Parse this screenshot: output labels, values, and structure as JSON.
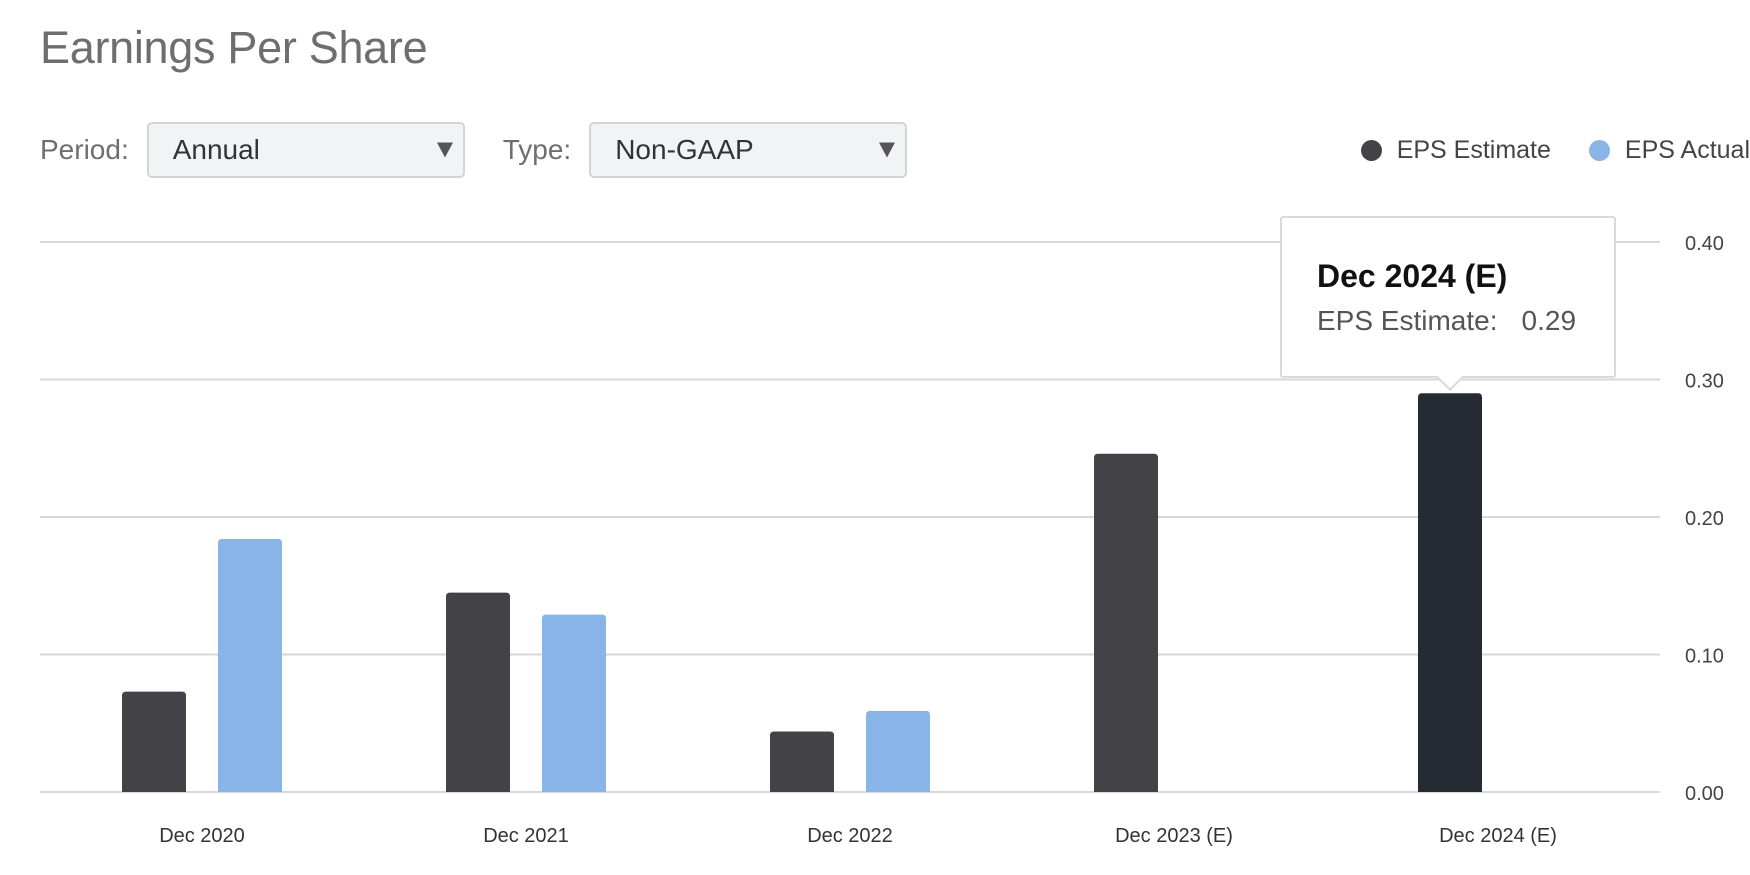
{
  "header": {
    "title": "Earnings Per Share"
  },
  "controls": {
    "period": {
      "label": "Period:",
      "value": "Annual"
    },
    "type": {
      "label": "Type:",
      "value": "Non-GAAP"
    }
  },
  "legend": [
    {
      "name": "EPS Estimate",
      "color": "#434347"
    },
    {
      "name": "EPS Actual",
      "color": "#88b4e7"
    }
  ],
  "tooltip": {
    "title": "Dec 2024 (E)",
    "label": "EPS Estimate:",
    "value": "0.29"
  },
  "chart_data": {
    "type": "bar",
    "title": "Earnings Per Share",
    "categories": [
      "Dec 2020",
      "Dec 2021",
      "Dec 2022",
      "Dec 2023 (E)",
      "Dec 2024 (E)"
    ],
    "series": [
      {
        "name": "EPS Estimate",
        "color": "#434347",
        "values": [
          0.073,
          0.145,
          0.044,
          0.246,
          0.29
        ]
      },
      {
        "name": "EPS Actual",
        "color": "#88b4e7",
        "values": [
          0.184,
          0.129,
          0.059,
          null,
          null
        ]
      }
    ],
    "highlight": {
      "series": "EPS Estimate",
      "category": "Dec 2024 (E)",
      "color": "#262b33"
    },
    "yticks": [
      "0.00",
      "0.10",
      "0.20",
      "0.30",
      "0.40"
    ],
    "ylim": [
      0,
      0.4
    ],
    "grid": true,
    "y_axis_side": "right",
    "legend_position": "top-right"
  }
}
